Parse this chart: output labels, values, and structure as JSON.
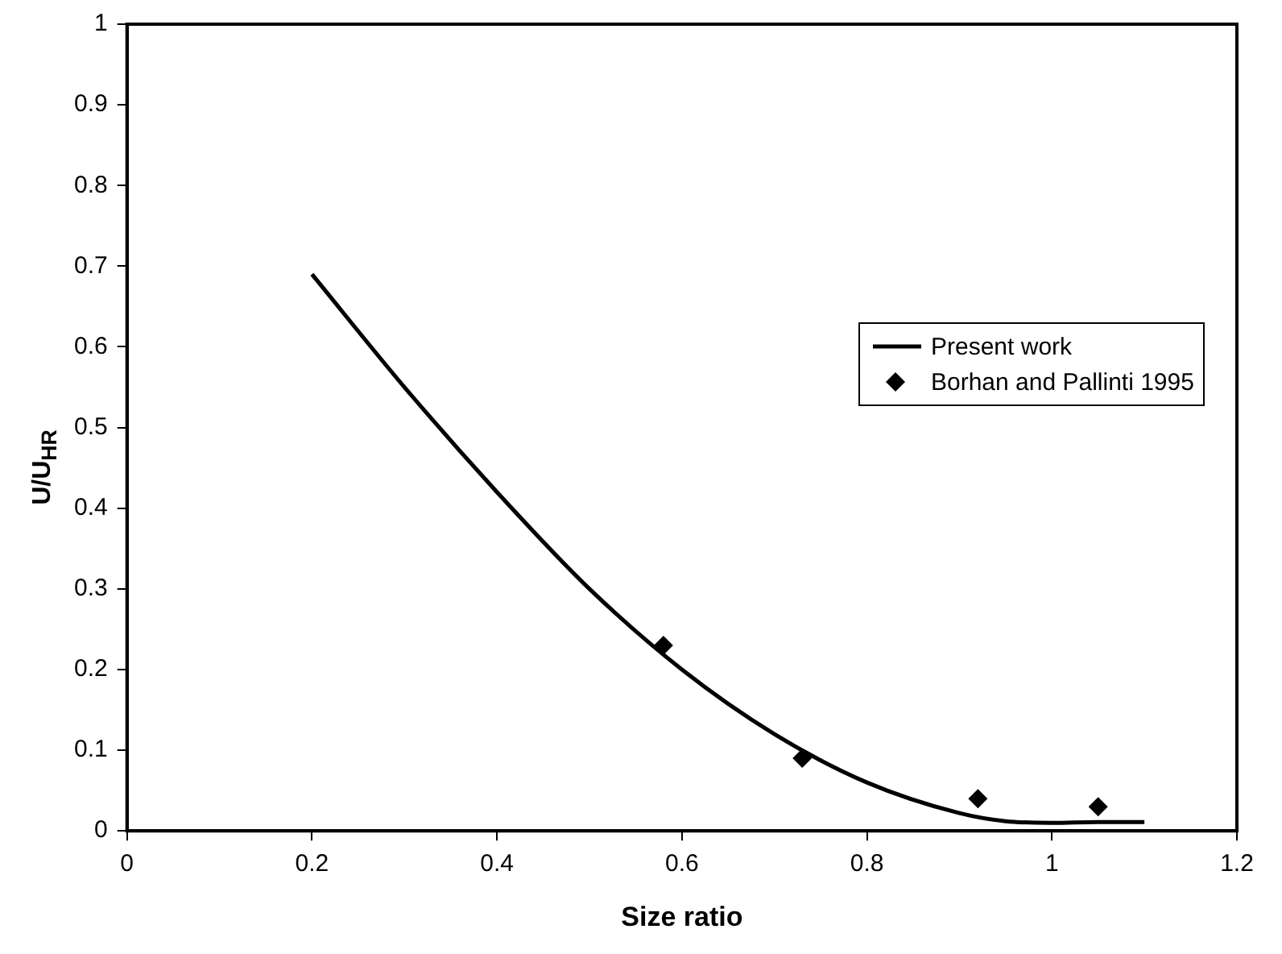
{
  "chart_data": {
    "type": "line",
    "xlabel": "Size ratio",
    "ylabel": "U/U$_{HR}$",
    "xlim": [
      0,
      1.2
    ],
    "xticks": [
      0,
      0.2,
      0.4,
      0.6,
      0.8,
      1,
      1.2
    ],
    "ylim": [
      0,
      1
    ],
    "yticks": [
      0,
      0.1,
      0.2,
      0.3,
      0.4,
      0.5,
      0.6,
      0.7,
      0.8,
      0.9,
      1
    ],
    "grid": false,
    "legend": "right",
    "series": [
      {
        "name": "Present work",
        "color": "#000000",
        "marker": "none",
        "line_style": "solid",
        "x": [
          0.2,
          0.3,
          0.4,
          0.5,
          0.6,
          0.7,
          0.8,
          0.9,
          0.95,
          1.0,
          1.05,
          1.1
        ],
        "values": [
          0.69,
          0.55,
          0.42,
          0.3,
          0.2,
          0.12,
          0.06,
          0.022,
          0.012,
          0.01,
          0.011,
          0.011
        ]
      },
      {
        "name": "Borhan and Pallinti 1995",
        "type": "scatter",
        "color": "#000000",
        "marker": "diamond",
        "x": [
          0.58,
          0.73,
          0.92,
          1.05
        ],
        "values": [
          0.23,
          0.09,
          0.04,
          0.03
        ]
      }
    ]
  }
}
